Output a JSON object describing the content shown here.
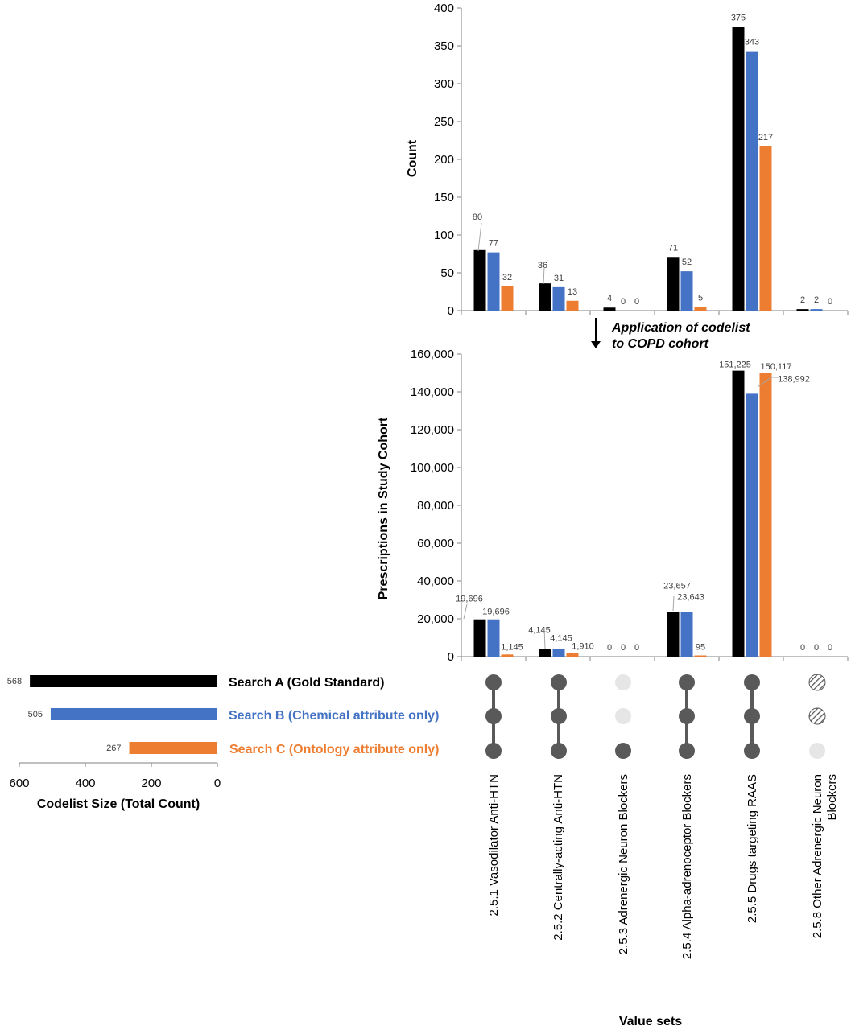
{
  "colors": {
    "search_a": "#000000",
    "search_b": "#4472c4",
    "search_c": "#ed7d31",
    "dot_active": "#595959",
    "dot_inactive": "#e6e6e6",
    "axis": "#808080"
  },
  "annotation": [
    "Application of codelist",
    "to COPD cohort"
  ],
  "x_axis_title": "Value sets",
  "chart_data": [
    {
      "type": "bar",
      "ylabel": "Count",
      "ylim": [
        0,
        400
      ],
      "yticks": [
        "0",
        "50",
        "100",
        "150",
        "200",
        "250",
        "300",
        "350",
        "400"
      ],
      "categories": [
        "2.5.1 Vasodilator Anti-HTN",
        "2.5.2 Centrally-acting Anti-HTN",
        "2.5.3 Adrenergic Neuron Blockers",
        "2.5.4 Alpha-adrenoceptor Blockers",
        "2.5.5 Drugs targeting RAAS",
        "2.5.8 Other Adrenergic Neuron Blockers"
      ],
      "series": [
        {
          "name": "Search A (Gold Standard)",
          "values": [
            80,
            36,
            4,
            71,
            375,
            2
          ],
          "labels": [
            "80",
            "36",
            "4",
            "71",
            "375",
            "2"
          ]
        },
        {
          "name": "Search B (Chemical attribute only)",
          "values": [
            77,
            31,
            0,
            52,
            343,
            2
          ],
          "labels": [
            "77",
            "31",
            "0",
            "52",
            "343",
            "2"
          ]
        },
        {
          "name": "Search C (Ontology attribute only)",
          "values": [
            32,
            13,
            0,
            5,
            217,
            0
          ],
          "labels": [
            "32",
            "13",
            "0",
            "5",
            "217",
            "0"
          ]
        }
      ]
    },
    {
      "type": "bar",
      "ylabel": "Prescriptions in Study Cohort",
      "ylim": [
        0,
        160000
      ],
      "yticks": [
        "0",
        "20,000",
        "40,000",
        "60,000",
        "80,000",
        "100,000",
        "120,000",
        "140,000",
        "160,000"
      ],
      "categories": [
        "2.5.1 Vasodilator Anti-HTN",
        "2.5.2 Centrally-acting Anti-HTN",
        "2.5.3 Adrenergic Neuron Blockers",
        "2.5.4 Alpha-adrenoceptor Blockers",
        "2.5.5 Drugs targeting RAAS",
        "2.5.8 Other Adrenergic Neuron Blockers"
      ],
      "series": [
        {
          "name": "Search A (Gold Standard)",
          "values": [
            19696,
            4145,
            0,
            23657,
            151225,
            0
          ],
          "labels": [
            "19,696",
            "4,145",
            "0",
            "23,657",
            "151,225",
            "0"
          ]
        },
        {
          "name": "Search B (Chemical attribute only)",
          "values": [
            19696,
            4145,
            0,
            23643,
            138992,
            0
          ],
          "labels": [
            "19,696",
            "4,145",
            "0",
            "23,643",
            "138,992",
            "0"
          ]
        },
        {
          "name": "Search C (Ontology attribute only)",
          "values": [
            1145,
            1910,
            0,
            95,
            150117,
            0
          ],
          "labels": [
            "1,145",
            "1,910",
            "0",
            "95",
            "150,117",
            "0"
          ]
        }
      ]
    },
    {
      "type": "bar",
      "orientation": "horizontal",
      "xlabel": "Codelist Size (Total Count)",
      "xlim": [
        0,
        600
      ],
      "xticks": [
        "600",
        "400",
        "200",
        "0"
      ],
      "categories": [
        "Search A (Gold Standard)",
        "Search B (Chemical attribute only)",
        "Search C (Ontology attribute only)"
      ],
      "values": [
        568,
        505,
        267
      ],
      "labels": [
        "568",
        "505",
        "267"
      ]
    },
    {
      "type": "table",
      "description_rows": [
        "Search A",
        "Search B",
        "Search C"
      ],
      "matrix": [
        [
          "filled",
          "filled",
          "light",
          "filled",
          "filled",
          "hatched"
        ],
        [
          "filled",
          "filled",
          "light",
          "filled",
          "filled",
          "hatched"
        ],
        [
          "filled",
          "filled",
          "filled",
          "filled",
          "filled",
          "light"
        ]
      ],
      "connectors": [
        true,
        true,
        false,
        true,
        true,
        false
      ]
    }
  ]
}
